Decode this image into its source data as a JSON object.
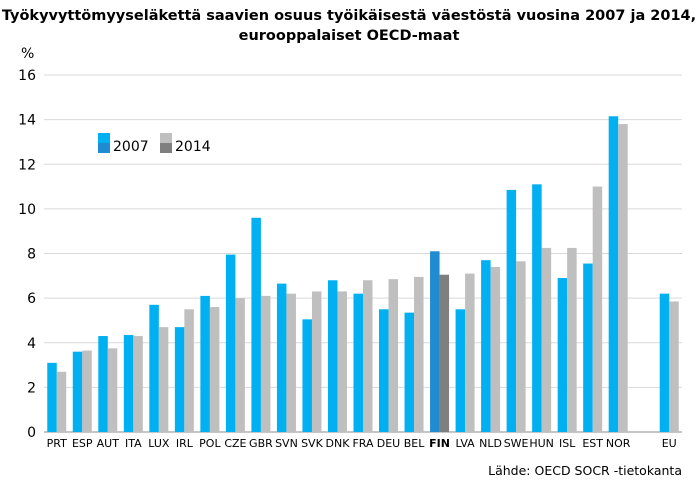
{
  "title_line1": "Työkyvyttömyyseläkettä saavien osuus työikäisestä väestöstä vuosina 2007 ja 2014,",
  "title_line2": "eurooppalaiset OECD-maat",
  "source": "Lähde: OECD SOCR -tietokanta",
  "colors": {
    "s2007": "#00b0f0",
    "s2014": "#bfbfbf",
    "fin2007": "#1f8bd0",
    "fin2014": "#7f7f7f",
    "grid": "#d9d9d9",
    "axis": "#8c8c8c"
  },
  "chart_data": {
    "type": "bar",
    "ylabel": "%",
    "ylim": [
      0,
      16
    ],
    "yticks": [
      0,
      2,
      4,
      6,
      8,
      10,
      12,
      14,
      16
    ],
    "grid": true,
    "legend": "top-left",
    "highlight_category": "FIN",
    "categories": [
      "PRT",
      "ESP",
      "AUT",
      "ITA",
      "LUX",
      "IRL",
      "POL",
      "CZE",
      "GBR",
      "SVN",
      "SVK",
      "DNK",
      "FRA",
      "DEU",
      "BEL",
      "FIN",
      "LVA",
      "NLD",
      "SWE",
      "HUN",
      "ISL",
      "EST",
      "NOR",
      "",
      "EU"
    ],
    "series": [
      {
        "name": "2007",
        "values": [
          3.1,
          3.6,
          4.3,
          4.35,
          5.7,
          4.7,
          6.1,
          7.95,
          9.6,
          6.65,
          5.05,
          6.8,
          6.2,
          5.5,
          5.35,
          8.1,
          5.5,
          7.7,
          10.85,
          11.1,
          6.9,
          7.55,
          14.15,
          null,
          6.2
        ]
      },
      {
        "name": "2014",
        "values": [
          2.7,
          3.65,
          3.75,
          4.3,
          4.7,
          5.5,
          5.6,
          6.0,
          6.1,
          6.2,
          6.3,
          6.3,
          6.8,
          6.85,
          6.95,
          7.05,
          7.1,
          7.4,
          7.65,
          8.25,
          8.25,
          11.0,
          13.8,
          null,
          5.85
        ]
      }
    ]
  }
}
